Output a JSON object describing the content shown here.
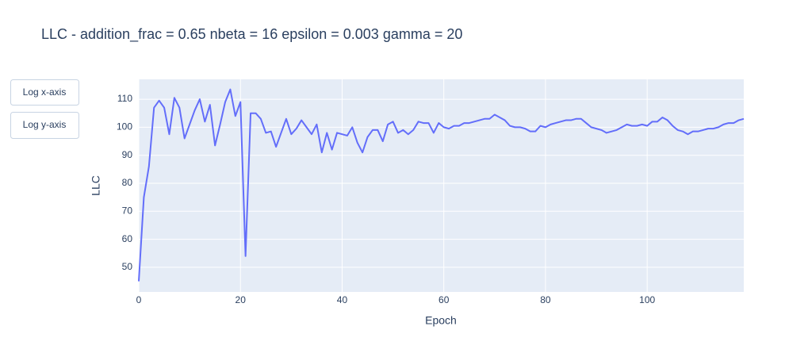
{
  "chart_data": {
    "type": "line",
    "title": "LLC - addition_frac = 0.65 nbeta = 16 epsilon = 0.003 gamma = 20",
    "x_label": "Epoch",
    "y_label": "LLC",
    "x": [
      0,
      1,
      2,
      3,
      4,
      5,
      6,
      7,
      8,
      9,
      10,
      11,
      12,
      13,
      14,
      15,
      16,
      17,
      18,
      19,
      20,
      21,
      22,
      23,
      24,
      25,
      26,
      27,
      28,
      29,
      30,
      31,
      32,
      33,
      34,
      35,
      36,
      37,
      38,
      39,
      40,
      41,
      42,
      43,
      44,
      45,
      46,
      47,
      48,
      49,
      50,
      51,
      52,
      53,
      54,
      55,
      56,
      57,
      58,
      59,
      60,
      61,
      62,
      63,
      64,
      65,
      66,
      67,
      68,
      69,
      70,
      71,
      72,
      73,
      74,
      75,
      76,
      77,
      78,
      79,
      80,
      81,
      82,
      83,
      84,
      85,
      86,
      87,
      88,
      89,
      90,
      91,
      92,
      93,
      94,
      95,
      96,
      97,
      98,
      99,
      100,
      101,
      102,
      103,
      104,
      105,
      106,
      107,
      108,
      109,
      110,
      111,
      112,
      113,
      114,
      115,
      116,
      117,
      118,
      119
    ],
    "values": [
      45,
      75,
      86,
      107,
      109.5,
      107,
      97.5,
      110.5,
      107,
      96,
      101,
      106,
      110,
      102,
      108,
      93.5,
      101,
      109,
      113.5,
      104,
      109,
      54,
      105,
      105,
      103,
      98,
      98.5,
      93,
      98,
      103,
      97.5,
      99.5,
      102.5,
      100,
      97.5,
      101,
      91,
      98,
      92,
      98,
      97.5,
      97,
      100,
      94.5,
      91,
      96.5,
      99,
      99,
      95,
      101,
      102,
      98,
      99,
      97.5,
      99,
      102,
      101.5,
      101.5,
      98,
      101.5,
      100,
      99.5,
      100.5,
      100.5,
      101.5,
      101.5,
      102,
      102.5,
      103,
      103,
      104.5,
      103.5,
      102.5,
      100.5,
      100,
      100,
      99.5,
      98.5,
      98.5,
      100.5,
      100,
      101,
      101.5,
      102,
      102.5,
      102.5,
      103,
      103,
      101.5,
      100,
      99.5,
      99,
      98,
      98.5,
      99,
      100,
      101,
      100.5,
      100.5,
      101,
      100.5,
      102,
      102,
      103.5,
      102.5,
      100.5,
      99,
      98.5,
      97.5,
      98.5,
      98.5,
      99,
      99.5,
      99.5,
      100,
      101,
      101.5,
      101.5,
      102.5,
      103
    ],
    "color": "#636efa",
    "xlim": [
      0,
      119
    ],
    "ylim": [
      41.2,
      117.1
    ],
    "xticks": [
      0,
      20,
      40,
      60,
      80,
      100
    ],
    "yticks": [
      50,
      60,
      70,
      80,
      90,
      100,
      110
    ],
    "grid": true
  },
  "buttons": [
    "Log x-axis",
    "Log y-axis"
  ]
}
